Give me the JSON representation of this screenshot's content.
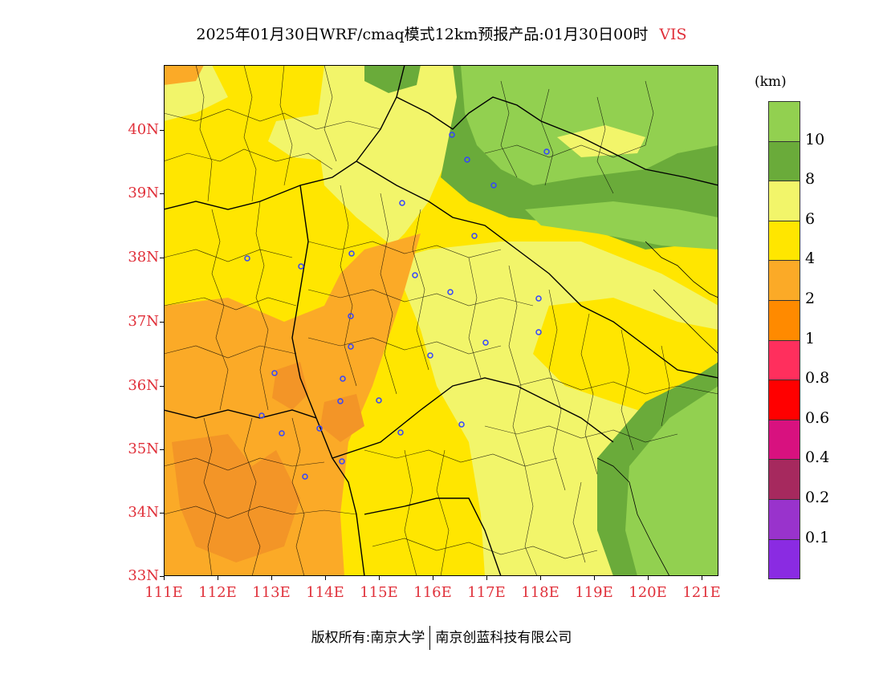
{
  "title": {
    "main": "2025年01月30日WRF/cmaq模式12km预报产品:01月30日00时",
    "variable": "VIS"
  },
  "axes": {
    "lat_labels": [
      "40N",
      "39N",
      "38N",
      "37N",
      "36N",
      "35N",
      "34N",
      "33N"
    ],
    "lon_labels": [
      "111E",
      "112E",
      "113E",
      "114E",
      "115E",
      "116E",
      "117E",
      "118E",
      "119E",
      "120E",
      "121E"
    ]
  },
  "legend": {
    "unit": "(km)",
    "labels": [
      "10",
      "8",
      "6",
      "4",
      "2",
      "1",
      "0.8",
      "0.6",
      "0.4",
      "0.2",
      "0.1"
    ],
    "colors": [
      "#92d050",
      "#6aab3a",
      "#f2f56a",
      "#ffe600",
      "#fbaa27",
      "#ff8a00",
      "#ff2f5d",
      "#ff0000",
      "#d8117f",
      "#a6295e",
      "#9933cc",
      "#8a2be2"
    ]
  },
  "copyright": {
    "left": "版权所有:南京大学",
    "right": "南京创蓝科技有限公司"
  },
  "map_colors": {
    "bg": "#ffe600",
    "orange_light": "#fbaa27",
    "orange_dark": "#f39527",
    "yellow_pale": "#f2f56a",
    "green_dark": "#6aab3a",
    "green_light": "#92d050",
    "station": "#3344ff"
  }
}
